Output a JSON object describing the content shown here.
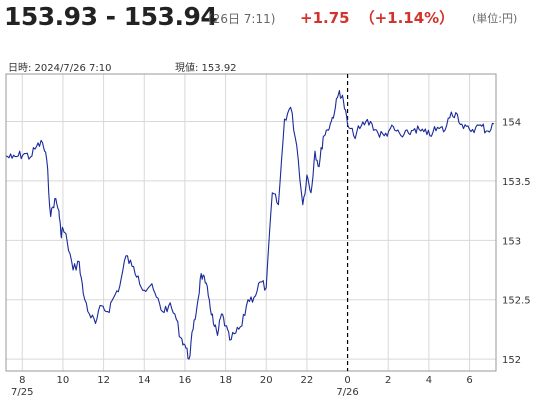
{
  "header": {
    "price_range": "153.93 - 153.94",
    "time": "(26日 7:11)",
    "change": "+1.75",
    "change_pct": "（+1.14%）",
    "unit": "(単位:円)"
  },
  "info": {
    "datetime": "日時: 2024/7/26  7:10",
    "current": "現値: 153.92"
  },
  "colors": {
    "line": "#1a2a9a",
    "up": "#d0342c",
    "grid": "#d8d8d8",
    "border": "#999999"
  },
  "chart_data": {
    "type": "line",
    "title": "",
    "xlabel": "",
    "ylabel": "",
    "ylim": [
      151.9,
      154.4
    ],
    "xlim": [
      7.2,
      31.3
    ],
    "x_ticks": [
      {
        "x": 8,
        "label": "8",
        "sub": "7/25"
      },
      {
        "x": 10,
        "label": "10",
        "sub": ""
      },
      {
        "x": 12,
        "label": "12",
        "sub": ""
      },
      {
        "x": 14,
        "label": "14",
        "sub": ""
      },
      {
        "x": 16,
        "label": "16",
        "sub": ""
      },
      {
        "x": 18,
        "label": "18",
        "sub": ""
      },
      {
        "x": 20,
        "label": "20",
        "sub": ""
      },
      {
        "x": 22,
        "label": "22",
        "sub": ""
      },
      {
        "x": 24,
        "label": "0",
        "sub": "7/26"
      },
      {
        "x": 26,
        "label": "2",
        "sub": ""
      },
      {
        "x": 28,
        "label": "4",
        "sub": ""
      },
      {
        "x": 30,
        "label": "6",
        "sub": ""
      }
    ],
    "y_ticks": [
      152,
      152.5,
      153,
      153.5,
      154
    ],
    "day_divider_x": 24,
    "grid": true,
    "series": [
      {
        "name": "",
        "x": [
          7.2,
          7.5,
          7.8,
          8.1,
          8.4,
          8.7,
          9.0,
          9.2,
          9.4,
          9.6,
          9.8,
          9.9,
          10.0,
          10.2,
          10.5,
          10.8,
          11.0,
          11.3,
          11.6,
          11.9,
          12.2,
          12.5,
          12.8,
          13.1,
          13.4,
          13.7,
          14.0,
          14.3,
          14.6,
          14.9,
          15.2,
          15.5,
          15.8,
          16.0,
          16.2,
          16.4,
          16.6,
          16.8,
          17.0,
          17.2,
          17.4,
          17.6,
          17.8,
          18.0,
          18.2,
          18.5,
          18.8,
          19.1,
          19.4,
          19.7,
          20.0,
          20.3,
          20.6,
          20.9,
          21.2,
          21.5,
          21.8,
          22.0,
          22.2,
          22.4,
          22.6,
          22.8,
          23.0,
          23.2,
          23.4,
          23.6,
          23.8,
          24.0,
          24.3,
          24.6,
          24.9,
          25.2,
          25.5,
          25.8,
          26.1,
          26.4,
          26.7,
          27.0,
          27.3,
          27.6,
          27.9,
          28.2,
          28.5,
          28.8,
          29.1,
          29.4,
          29.7,
          30.0,
          30.3,
          30.6,
          30.9,
          31.2
        ],
        "y": [
          153.71,
          153.69,
          153.71,
          153.73,
          153.7,
          153.79,
          153.82,
          153.68,
          153.2,
          153.35,
          153.25,
          153.05,
          153.1,
          153.0,
          152.75,
          152.82,
          152.55,
          152.38,
          152.3,
          152.45,
          152.4,
          152.52,
          152.62,
          152.87,
          152.78,
          152.7,
          152.58,
          152.62,
          152.52,
          152.4,
          152.45,
          152.38,
          152.18,
          152.12,
          152.0,
          152.25,
          152.45,
          152.72,
          152.64,
          152.5,
          152.3,
          152.2,
          152.38,
          152.28,
          152.16,
          152.22,
          152.28,
          152.5,
          152.52,
          152.65,
          152.6,
          153.4,
          153.3,
          154.02,
          154.12,
          153.8,
          153.3,
          153.55,
          153.4,
          153.75,
          153.62,
          153.87,
          153.93,
          154.0,
          154.12,
          154.26,
          154.17,
          153.97,
          153.88,
          153.94,
          154.0,
          153.98,
          153.9,
          153.88,
          153.94,
          153.92,
          153.87,
          153.9,
          153.94,
          153.92,
          153.89,
          153.91,
          153.94,
          153.93,
          154.08,
          154.06,
          153.94,
          153.93,
          153.95,
          153.96,
          153.92,
          153.98
        ]
      }
    ]
  }
}
